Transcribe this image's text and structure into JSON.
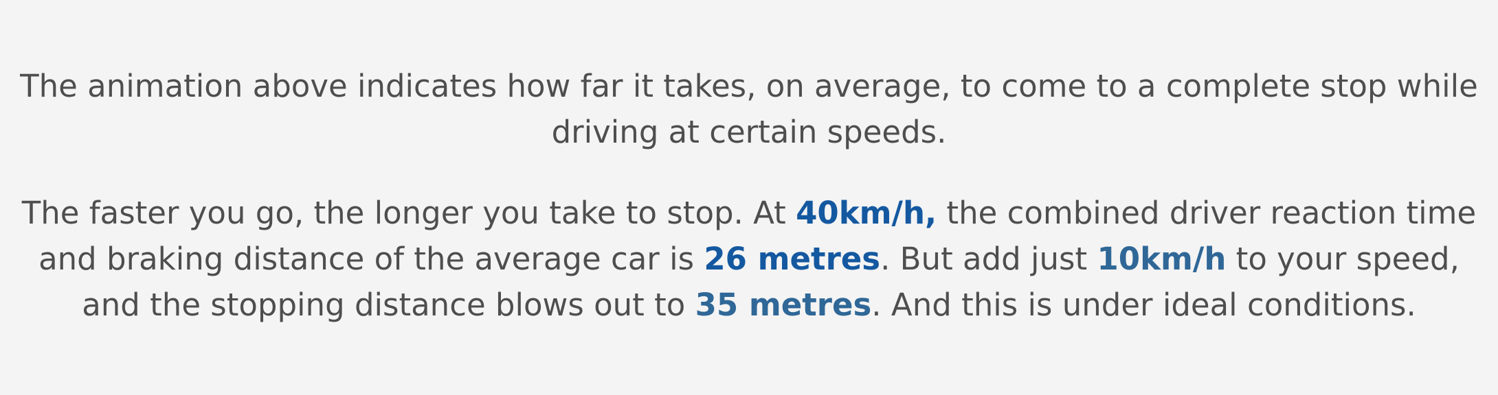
{
  "article": {
    "paragraph1": {
      "text": "The animation above indicates how far it takes, on average, to come to a complete stop while driving at certain speeds."
    },
    "paragraph2": {
      "seg1": "The faster you go, the longer you take to stop. At ",
      "hl1": "40km/h,",
      "seg2": " the combined driver reaction time and braking distance of the average car is ",
      "hl2": "26 metres",
      "seg3": ". But add just ",
      "hl3": "10km/h",
      "seg4": " to your speed, and the stopping distance blows out to ",
      "hl4": "35 metres",
      "seg5": ". And this is under ideal conditions."
    }
  },
  "colors": {
    "text": "#4e4e4e",
    "highlight_dark": "#1458a0",
    "highlight_mid": "#2f6797",
    "background": "#f4f4f4"
  }
}
